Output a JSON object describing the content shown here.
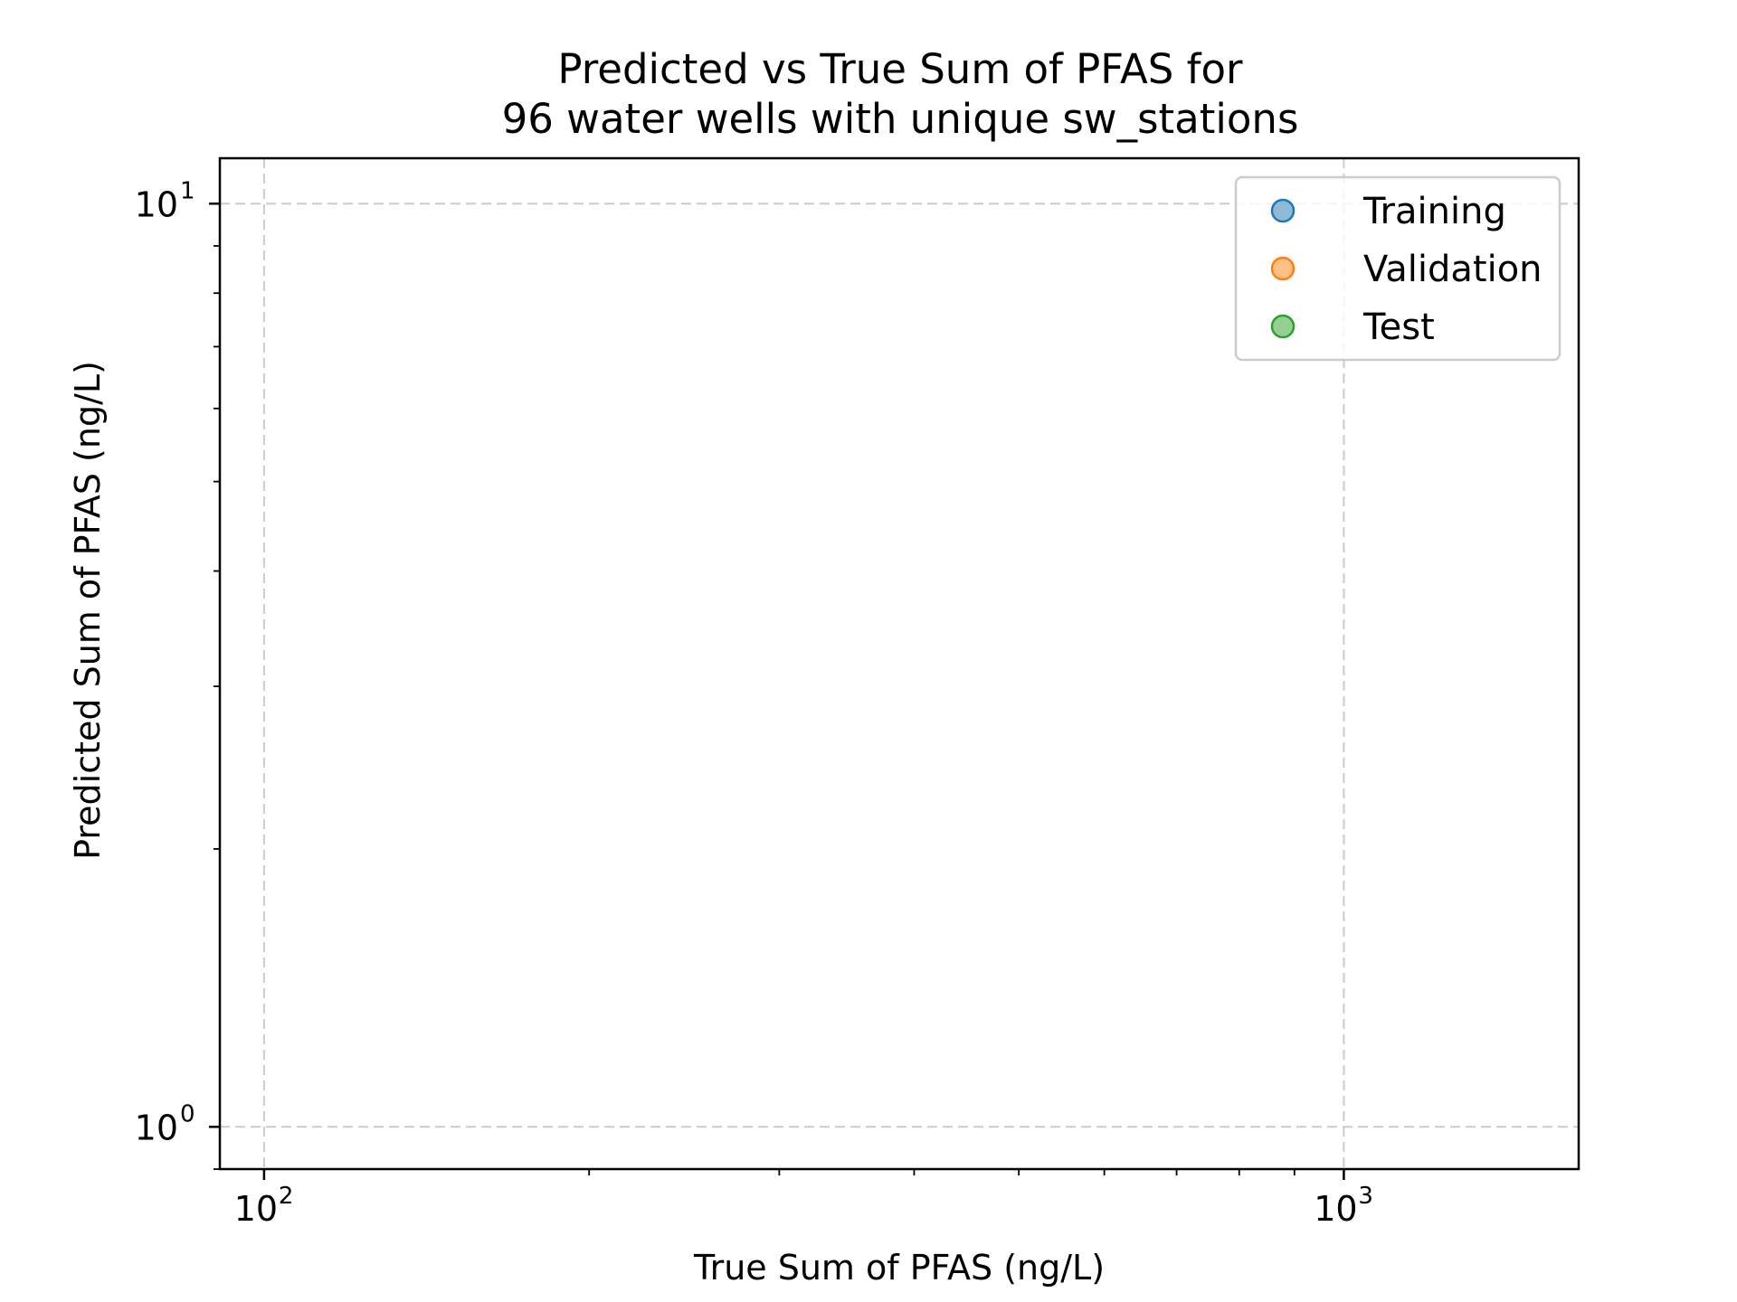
{
  "chart_data": {
    "type": "scatter",
    "title": "Predicted vs True Sum of PFAS for",
    "subtitle": "96 water wells with unique sw_stations",
    "xlabel": "True Sum of PFAS (ng/L)",
    "ylabel": "Predicted Sum of PFAS (ng/L)",
    "xscale": "log",
    "yscale": "log",
    "xlim": [
      91,
      1650
    ],
    "ylim": [
      0.9,
      11.2
    ],
    "xticks": [
      {
        "value": 100,
        "base": "10",
        "exp": "2"
      },
      {
        "value": 1000,
        "base": "10",
        "exp": "3"
      }
    ],
    "yticks": [
      {
        "value": 1,
        "base": "10",
        "exp": "0"
      },
      {
        "value": 10,
        "base": "10",
        "exp": "1"
      }
    ],
    "grid": true,
    "legend_position": "upper right",
    "series": [
      {
        "name": "Training",
        "color": "#1f77b4",
        "points": []
      },
      {
        "name": "Validation",
        "color": "#ff7f0e",
        "points": []
      },
      {
        "name": "Test",
        "color": "#2ca02c",
        "points": []
      }
    ]
  }
}
